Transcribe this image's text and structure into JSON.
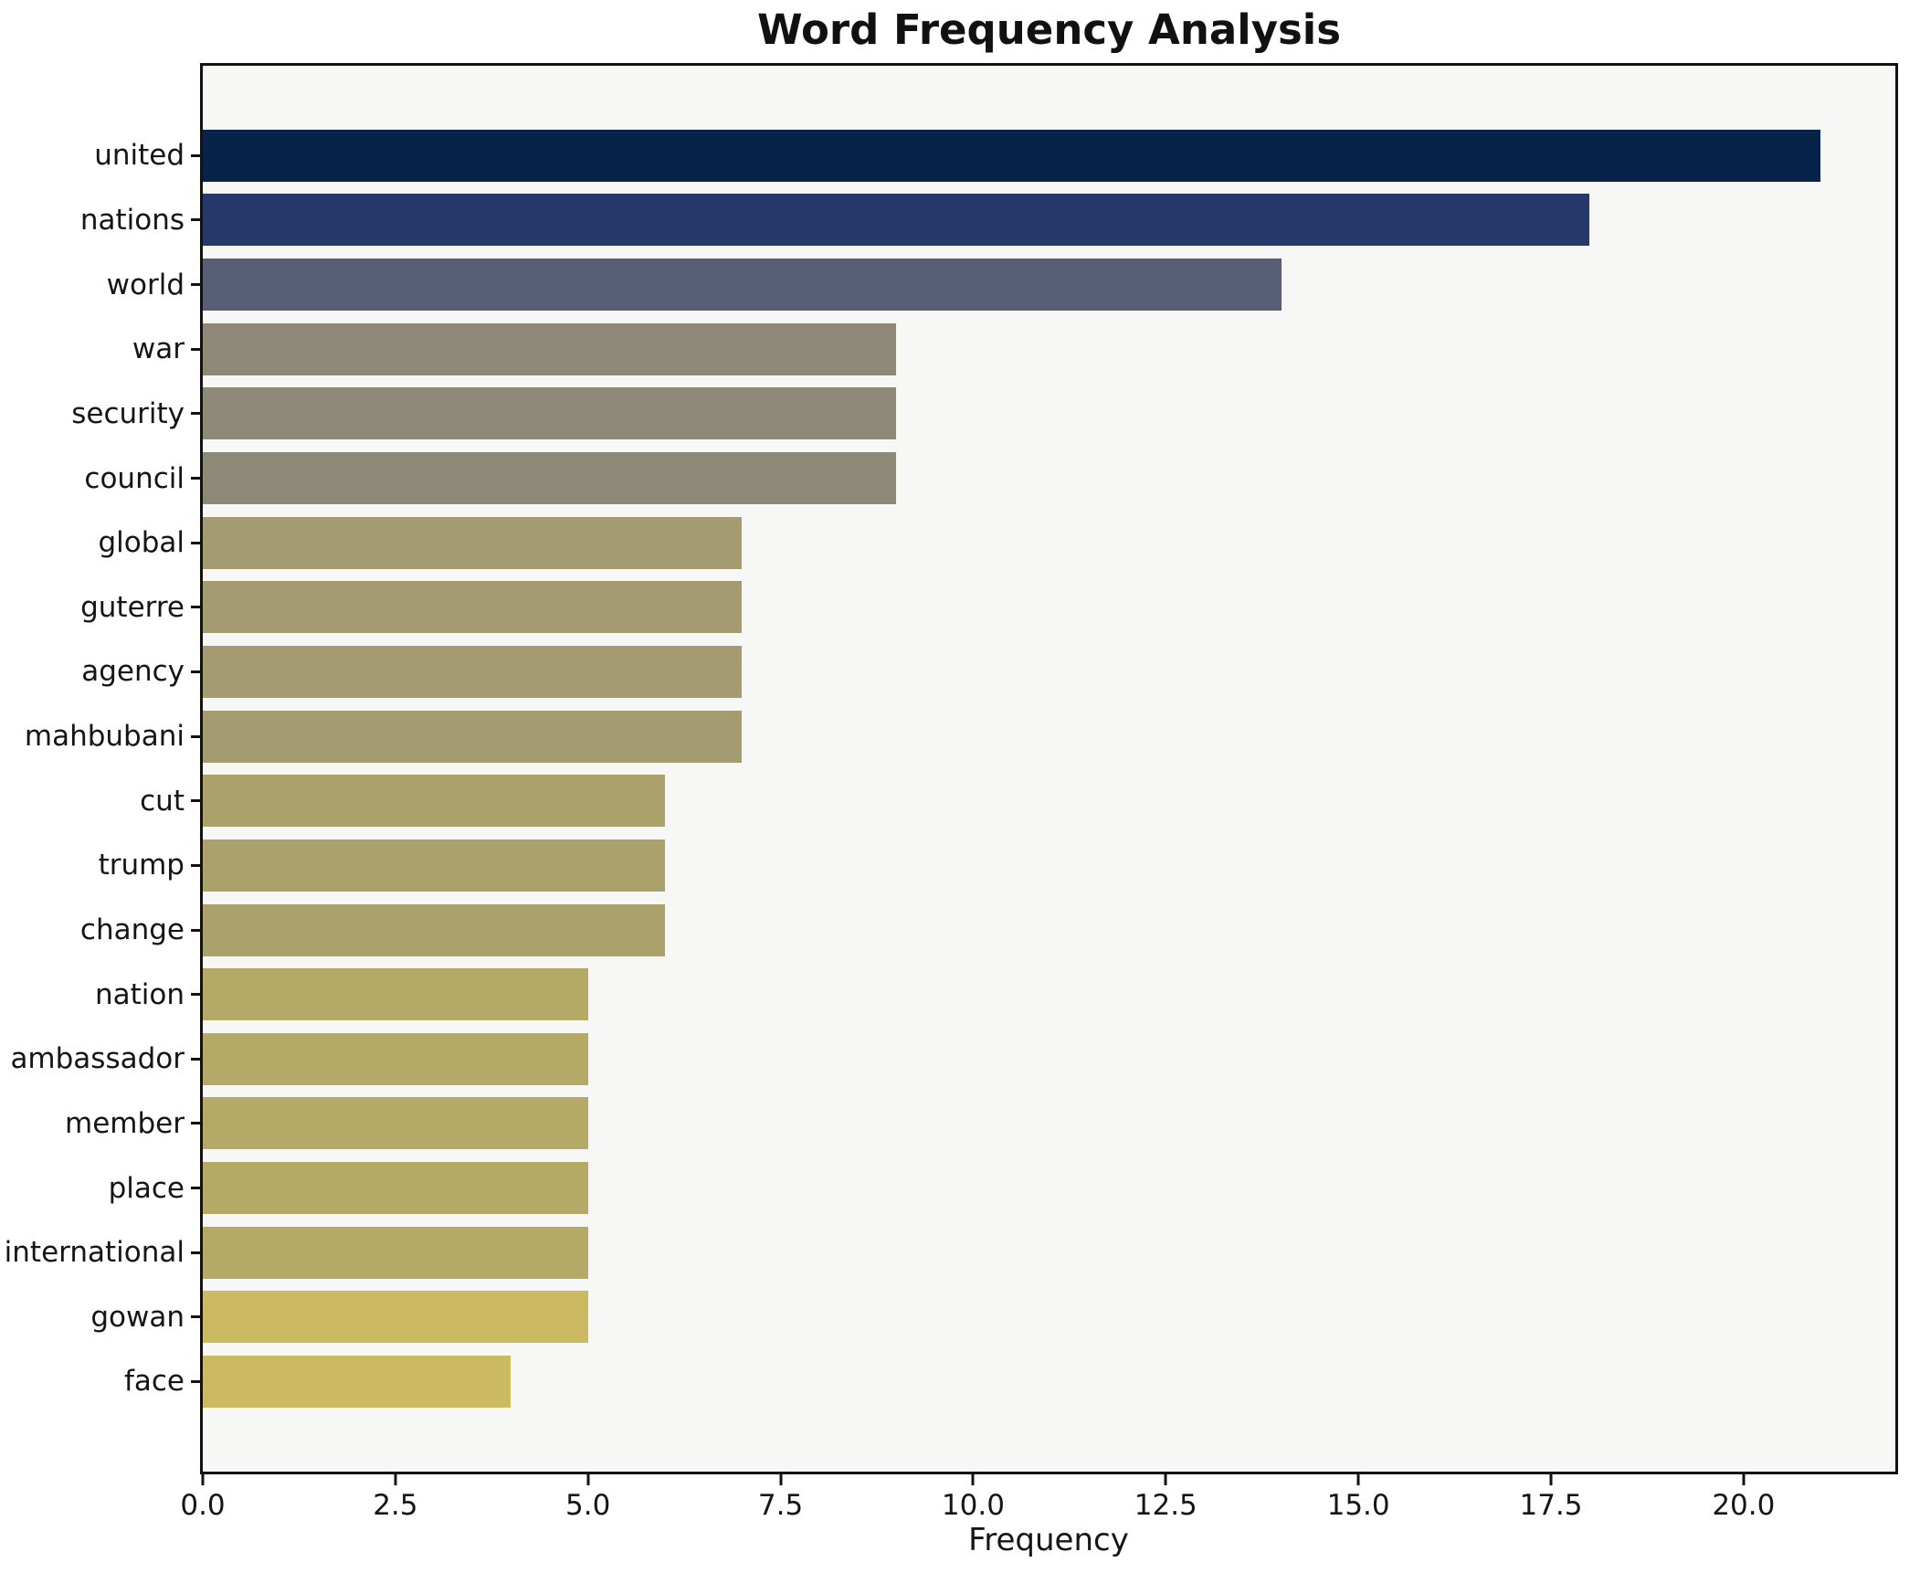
{
  "chart_data": {
    "type": "bar",
    "orientation": "horizontal",
    "title": "Word Frequency Analysis",
    "xlabel": "Frequency",
    "ylabel": "",
    "categories": [
      "united",
      "nations",
      "world",
      "war",
      "security",
      "council",
      "global",
      "guterre",
      "agency",
      "mahbubani",
      "cut",
      "trump",
      "change",
      "nation",
      "ambassador",
      "member",
      "place",
      "international",
      "gowan",
      "face"
    ],
    "values": [
      21,
      18,
      14,
      9,
      9,
      9,
      7,
      7,
      7,
      7,
      6,
      6,
      6,
      5,
      5,
      5,
      5,
      5,
      5,
      4
    ],
    "colors": [
      "#08234a",
      "#27396a",
      "#585e76",
      "#8e8977",
      "#8e8977",
      "#8e8977",
      "#a49c70",
      "#a49c70",
      "#a49c70",
      "#a49c70",
      "#aaa16b",
      "#aaa16b",
      "#aaa16b",
      "#b4a966",
      "#b4a966",
      "#b4a966",
      "#b4a966",
      "#b4a966",
      "#cbba61",
      "#cbba61"
    ],
    "xlim": [
      0,
      21.97
    ],
    "xticks": [
      0,
      2.5,
      5,
      7.5,
      10,
      12.5,
      15,
      17.5,
      20
    ],
    "xtick_labels": [
      "0.0",
      "2.5",
      "5.0",
      "7.5",
      "10.0",
      "12.5",
      "15.0",
      "17.5",
      "20.0"
    ],
    "grid": false,
    "legend": false,
    "plot_background": "#f7f7f5",
    "spine_color": "#121212"
  }
}
